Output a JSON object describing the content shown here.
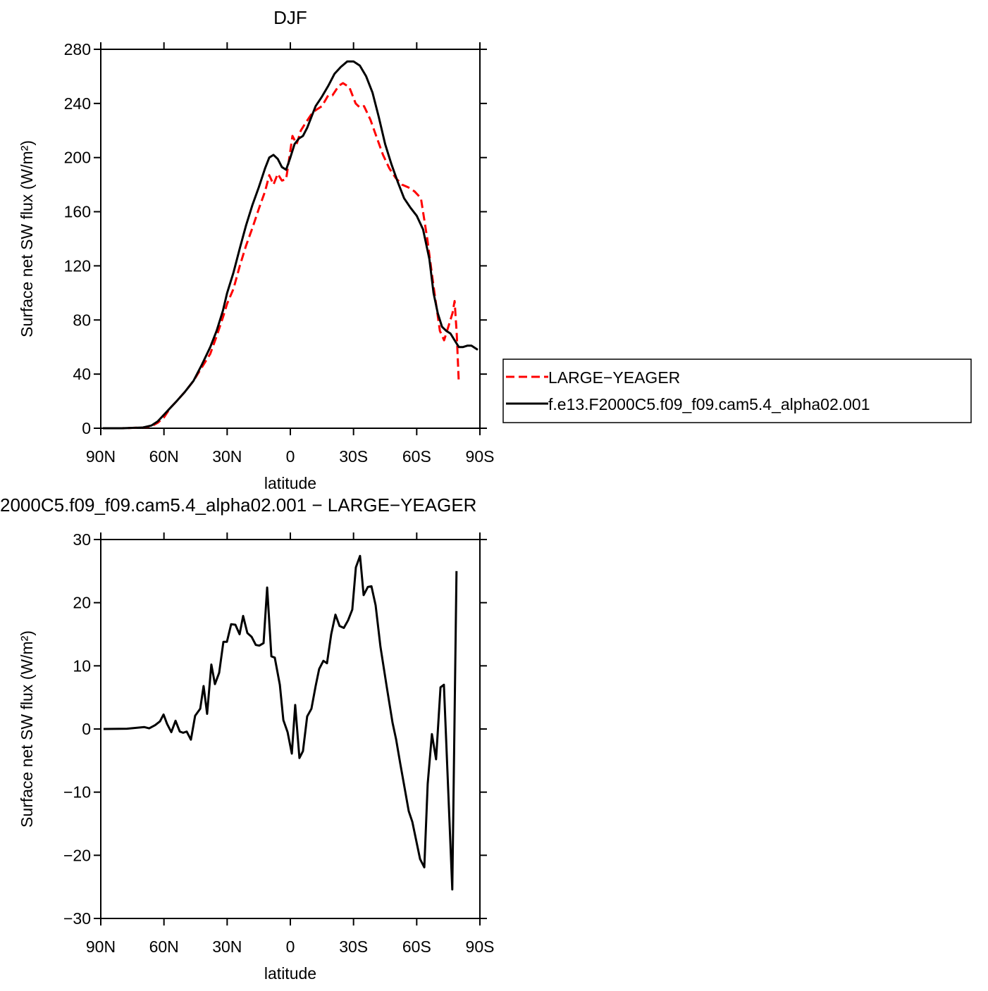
{
  "chart_data": [
    {
      "type": "line",
      "title": "DJF",
      "xlabel": "latitude",
      "ylabel": "Surface net SW flux (W/m²)",
      "xlim": [
        90,
        -90
      ],
      "ylim": [
        0,
        280
      ],
      "xticks": [
        {
          "value": 90,
          "label": "90N"
        },
        {
          "value": 60,
          "label": "60N"
        },
        {
          "value": 30,
          "label": "30N"
        },
        0,
        {
          "value": -30,
          "label": "30S"
        },
        {
          "value": -60,
          "label": "60S"
        },
        {
          "value": -90,
          "label": "90S"
        }
      ],
      "yticks": [
        0,
        40,
        80,
        120,
        160,
        200,
        240,
        280
      ],
      "legend": "right",
      "series": [
        {
          "name": "LARGE−YEAGER",
          "color": "#ff0000",
          "dash": true,
          "x": [
            89,
            80,
            70,
            66,
            63,
            60,
            57,
            54,
            50,
            46,
            42,
            38,
            35,
            32,
            30,
            27,
            24,
            21,
            18,
            15,
            12,
            10,
            8,
            6,
            4,
            2,
            0,
            -1,
            -3,
            -5,
            -7,
            -10,
            -12,
            -15,
            -18,
            -20,
            -23,
            -25,
            -28,
            -31,
            -33,
            -35,
            -38,
            -41,
            -44,
            -47,
            -50,
            -53,
            -56,
            -59,
            -62,
            -65,
            -68,
            -71,
            -73,
            -75,
            -77,
            -78,
            -79,
            -80
          ],
          "values": [
            0,
            0,
            0.5,
            1.5,
            4,
            8,
            15,
            20,
            27,
            35,
            45,
            55,
            68,
            82,
            92,
            103,
            120,
            135,
            148,
            162,
            175,
            187,
            180,
            188,
            183,
            184,
            205,
            216,
            210,
            220,
            225,
            232,
            235,
            238,
            246,
            246,
            253,
            255,
            252,
            240,
            237,
            238,
            228,
            215,
            202,
            192,
            185,
            180,
            178,
            175,
            170,
            140,
            105,
            72,
            65,
            75,
            85,
            94,
            70,
            33
          ]
        },
        {
          "name": "f.e13.F2000C5.f09_f09.cam5.4_alpha02.001",
          "color": "#000000",
          "dash": false,
          "x": [
            89,
            80,
            70,
            66,
            63,
            60,
            57,
            54,
            50,
            46,
            42,
            38,
            35,
            32,
            30,
            27,
            24,
            21,
            18,
            15,
            12,
            10,
            8,
            6,
            4,
            2,
            0,
            -2,
            -4,
            -6,
            -8,
            -10,
            -12,
            -15,
            -18,
            -21,
            -24,
            -27,
            -30,
            -33,
            -36,
            -39,
            -42,
            -45,
            -48,
            -51,
            -54,
            -57,
            -60,
            -63,
            -66,
            -68,
            -70,
            -72,
            -74,
            -76,
            -78,
            -80,
            -82,
            -84,
            -86,
            -89
          ],
          "values": [
            0,
            0,
            0.5,
            2,
            5,
            10,
            15,
            20,
            27,
            35,
            47,
            60,
            72,
            87,
            100,
            115,
            133,
            150,
            165,
            178,
            192,
            200,
            202,
            199,
            193,
            191,
            200,
            210,
            214,
            216,
            222,
            230,
            238,
            245,
            253,
            262,
            267,
            271,
            271,
            268,
            260,
            248,
            230,
            210,
            195,
            182,
            170,
            163,
            157,
            147,
            125,
            100,
            85,
            75,
            72,
            70,
            65,
            60,
            60,
            61,
            61,
            58
          ]
        }
      ]
    },
    {
      "type": "line",
      "title": "2000C5.f09_f09.cam5.4_alpha02.001 − LARGE−YEAGER",
      "xlabel": "latitude",
      "ylabel": "Surface net SW flux (W/m²)",
      "xlim": [
        90,
        -90
      ],
      "ylim": [
        -30,
        30
      ],
      "xticks": [
        {
          "value": 90,
          "label": "90N"
        },
        {
          "value": 60,
          "label": "60N"
        },
        {
          "value": 30,
          "label": "30N"
        },
        0,
        {
          "value": -30,
          "label": "30S"
        },
        {
          "value": -60,
          "label": "60S"
        },
        {
          "value": -90,
          "label": "90S"
        }
      ],
      "yticks": [
        {
          "value": -30,
          "label": "−30"
        },
        {
          "value": -20,
          "label": "−20"
        },
        {
          "value": -10,
          "label": "−10"
        },
        0,
        10,
        20,
        30
      ],
      "series": [
        {
          "color": "#000000",
          "dash": false,
          "x": [
            88.7,
            77.6,
            69.3,
            67,
            64.2,
            61.9,
            60.2,
            58.5,
            56.5,
            54.5,
            52.5,
            50.9,
            49.2,
            47.2,
            45.2,
            42.8,
            41.2,
            39.5,
            37.5,
            35.8,
            33.8,
            31.8,
            30.1,
            28.1,
            26.1,
            24.1,
            22.4,
            20.4,
            18.4,
            16.4,
            14.7,
            12.7,
            11,
            9,
            7.4,
            5,
            3.3,
            1.3,
            -0.7,
            -2.3,
            -4.3,
            -6,
            -8,
            -10,
            -12,
            -13.7,
            -15.7,
            -17.4,
            -19.4,
            -21.4,
            -23.4,
            -25.4,
            -27.4,
            -29.4,
            -31.1,
            -33.1,
            -34.8,
            -36.8,
            -38.5,
            -40.5,
            -42.8,
            -45.8,
            -48.5,
            -50.2,
            -52.2,
            -54.5,
            -56.2,
            -57.9,
            -61.6,
            -63.6,
            -65.2,
            -67.2,
            -69.2,
            -71.3,
            -72.9,
            -76.9,
            -78.9
          ],
          "values": [
            0,
            0.05,
            0.3,
            0.1,
            0.6,
            1.2,
            2.3,
            0.8,
            -0.5,
            1.3,
            -0.4,
            -0.6,
            -0.4,
            -1.7,
            2.1,
            3.2,
            6.8,
            2.4,
            10.2,
            7.1,
            8.9,
            13.8,
            13.8,
            16.6,
            16.5,
            15,
            17.9,
            15.2,
            14.6,
            13.3,
            13.2,
            13.6,
            22.4,
            11.5,
            11.3,
            7,
            1.4,
            -0.5,
            -3.9,
            3.8,
            -4.6,
            -3.5,
            2,
            3.2,
            6.8,
            9.5,
            10.8,
            10.4,
            15,
            18.1,
            16.3,
            16,
            17.2,
            18.9,
            25.6,
            27.4,
            21.2,
            22.5,
            22.6,
            19.6,
            13,
            6.6,
            1,
            -1.6,
            -5.5,
            -9.8,
            -13,
            -14.7,
            -20.6,
            -21.9,
            -8.7,
            -0.8,
            -4.8,
            6.6,
            7,
            -25.4,
            25
          ]
        }
      ]
    }
  ]
}
